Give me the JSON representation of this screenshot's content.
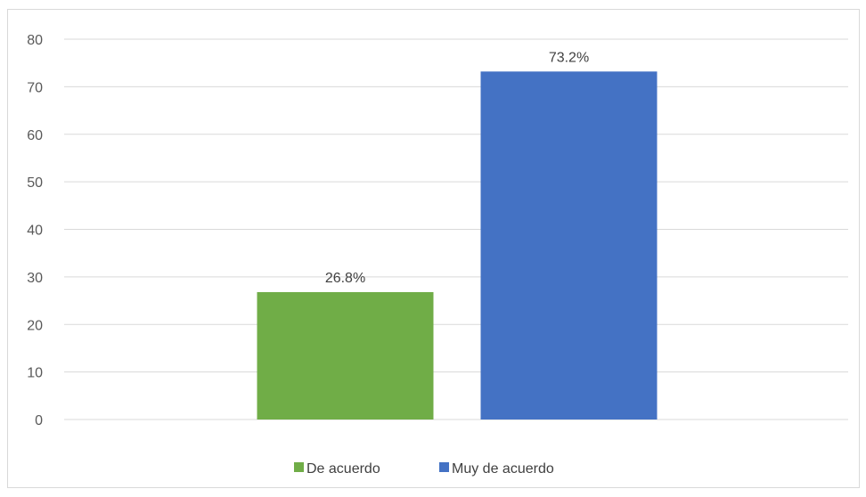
{
  "chart_data": {
    "type": "bar",
    "ylim": [
      0,
      80
    ],
    "yticks": [
      0,
      10,
      20,
      30,
      40,
      50,
      60,
      70,
      80
    ],
    "grid": true,
    "legend_position": "bottom",
    "series": [
      {
        "name": "De acuerdo",
        "value": 26.8,
        "label": "26.8%",
        "color": "#70ad47"
      },
      {
        "name": "Muy de acuerdo",
        "value": 73.2,
        "label": "73.2%",
        "color": "#4472c4"
      }
    ]
  }
}
